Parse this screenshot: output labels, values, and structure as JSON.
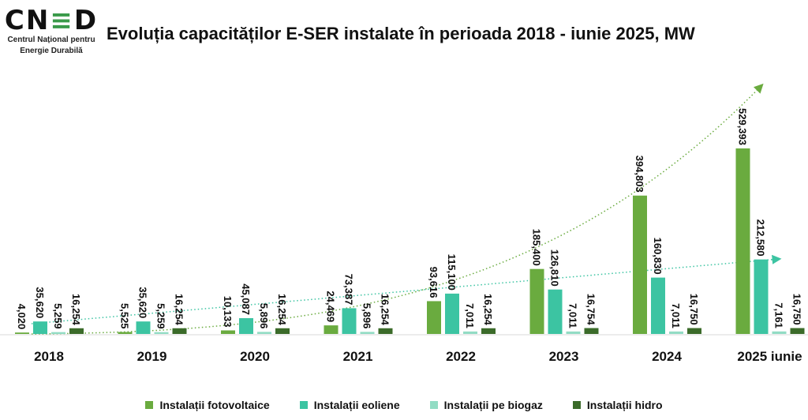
{
  "logo": {
    "mark": "CNED",
    "line1": "Centrul Național pentru",
    "line2": "Energie Durabilă"
  },
  "chart_data": {
    "type": "bar",
    "title": "Evoluția capacităților E-SER instalate în perioada 2018 - iunie 2025, MW",
    "categories": [
      "2018",
      "2019",
      "2020",
      "2021",
      "2022",
      "2023",
      "2024",
      "2025 iunie"
    ],
    "series": [
      {
        "name": "Instalații fotovoltaice",
        "color": "#6aab3f",
        "values": [
          4.02,
          5.525,
          10.133,
          24.469,
          93.616,
          185.4,
          394.803,
          529.393
        ],
        "labels": [
          "4,020",
          "5,525",
          "10,133",
          "24,469",
          "93,616",
          "185,400",
          "394,803",
          "529,393"
        ]
      },
      {
        "name": "Instalații eoliene",
        "color": "#3cc4a2",
        "values": [
          35.62,
          35.62,
          45.087,
          73.387,
          115.1,
          126.81,
          160.83,
          212.58
        ],
        "labels": [
          "35,620",
          "35,620",
          "45,087",
          "73,387",
          "115,100",
          "126,810",
          "160,830",
          "212,580"
        ]
      },
      {
        "name": "Instalații pe biogaz",
        "color": "#92dcc4",
        "values": [
          5.259,
          5.259,
          5.896,
          5.896,
          7.011,
          7.011,
          7.011,
          7.161
        ],
        "labels": [
          "5,259",
          "5,259",
          "5,896",
          "5,896",
          "7,011",
          "7,011",
          "7,011",
          "7,161"
        ]
      },
      {
        "name": "Instalații hidro",
        "color": "#3b6b2a",
        "values": [
          16.254,
          16.254,
          16.254,
          16.254,
          16.254,
          16.754,
          16.75,
          16.75
        ],
        "labels": [
          "16,254",
          "16,254",
          "16,254",
          "16,254",
          "16,254",
          "16,754",
          "16,750",
          "16,750"
        ]
      }
    ],
    "trendlines": [
      {
        "series": "Instalații fotovoltaice",
        "kind": "exponential"
      },
      {
        "series": "Instalații eoliene",
        "kind": "linear"
      }
    ],
    "ylim": [
      0,
      560
    ],
    "grid": false,
    "legend": "bottom"
  }
}
